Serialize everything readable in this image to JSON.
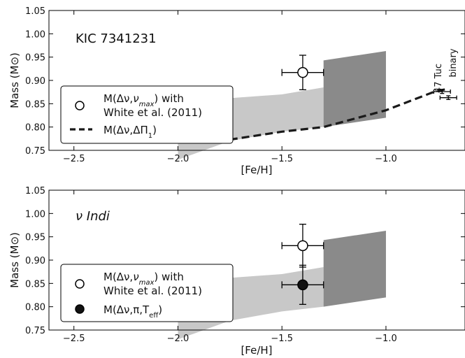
{
  "chart_data": [
    {
      "type": "scatter",
      "title": "KIC 7341231",
      "xlabel": "[Fe/H]",
      "ylabel": "Mass (M⊙)",
      "xlim": [
        -2.62,
        -0.62
      ],
      "ylim": [
        0.75,
        1.05
      ],
      "xticks": [
        -2.5,
        -2.0,
        -1.5,
        -1.0
      ],
      "xtick_labels": [
        "−2.5",
        "−2.0",
        "−1.5",
        "−1.0"
      ],
      "yticks": [
        0.75,
        0.8,
        0.85,
        0.9,
        0.95,
        1.0,
        1.05
      ],
      "ytick_labels": [
        "0.75",
        "0.80",
        "0.85",
        "0.90",
        "0.95",
        "1.00",
        "1.05"
      ],
      "bands": [
        {
          "color": "#c8c8c8",
          "x": [
            -2.0,
            -1.75,
            -1.5,
            -1.3
          ],
          "low": [
            0.73,
            0.77,
            0.79,
            0.8
          ],
          "high": [
            0.845,
            0.862,
            0.87,
            0.885
          ]
        },
        {
          "color": "#8a8a8a",
          "x": [
            -1.3,
            -1.0
          ],
          "low": [
            0.8,
            0.82
          ],
          "high": [
            0.943,
            0.963
          ]
        }
      ],
      "series": [
        {
          "name": "M(Δν,ν_max) with White et al. (2011)",
          "marker": "open-circle",
          "points": [
            {
              "x": -1.4,
              "y": 0.917,
              "xerr": 0.1,
              "yerr": 0.037
            }
          ]
        },
        {
          "name": "M(Δν,ΔΠ₁)",
          "style": "dashed-line",
          "x": [
            -1.75,
            -1.5,
            -1.3,
            -1.0,
            -0.76,
            -0.7
          ],
          "y": [
            0.773,
            0.79,
            0.8,
            0.836,
            0.877,
            0.882
          ]
        },
        {
          "name": "47 Tuc binary",
          "marker": "errorbar",
          "points": [
            {
              "x": -0.73,
              "y": 0.876,
              "xerr": 0.04,
              "yerr": 0.004
            },
            {
              "x": -0.7,
              "y": 0.863,
              "xerr": 0.04,
              "yerr": 0.004
            }
          ]
        }
      ],
      "annotations": [
        "47 Tuc",
        "binary"
      ],
      "legend": {
        "location": "center-left",
        "entries": [
          "M(Δν,ν_max) with",
          "White et al. (2011)",
          "M(Δν,ΔΠ₁)"
        ]
      }
    },
    {
      "type": "scatter",
      "title": "ν Indi",
      "xlabel": "[Fe/H]",
      "ylabel": "Mass (M⊙)",
      "xlim": [
        -2.62,
        -0.62
      ],
      "ylim": [
        0.75,
        1.05
      ],
      "xticks": [
        -2.5,
        -2.0,
        -1.5,
        -1.0
      ],
      "xtick_labels": [
        "−2.5",
        "−2.0",
        "−1.5",
        "−1.0"
      ],
      "yticks": [
        0.75,
        0.8,
        0.85,
        0.9,
        0.95,
        1.0,
        1.05
      ],
      "ytick_labels": [
        "0.75",
        "0.80",
        "0.85",
        "0.90",
        "0.95",
        "1.00",
        "1.05"
      ],
      "bands": [
        {
          "color": "#c8c8c8",
          "x": [
            -2.0,
            -1.75,
            -1.5,
            -1.3
          ],
          "low": [
            0.73,
            0.77,
            0.79,
            0.8
          ],
          "high": [
            0.845,
            0.862,
            0.87,
            0.885
          ]
        },
        {
          "color": "#8a8a8a",
          "x": [
            -1.3,
            -1.0
          ],
          "low": [
            0.8,
            0.82
          ],
          "high": [
            0.943,
            0.963
          ]
        }
      ],
      "series": [
        {
          "name": "M(Δν,ν_max) with White et al. (2011)",
          "marker": "open-circle",
          "points": [
            {
              "x": -1.4,
              "y": 0.931,
              "xerr": 0.1,
              "yerr": 0.046
            }
          ]
        },
        {
          "name": "M(Δν,π,T_eff)",
          "marker": "filled-circle",
          "points": [
            {
              "x": -1.4,
              "y": 0.847,
              "xerr": 0.1,
              "yerr": 0.042
            }
          ]
        }
      ],
      "legend": {
        "location": "lower-left",
        "entries": [
          "M(Δν,ν_max) with",
          "White et al. (2011)",
          "M(Δν,π,T_eff)"
        ]
      }
    }
  ]
}
